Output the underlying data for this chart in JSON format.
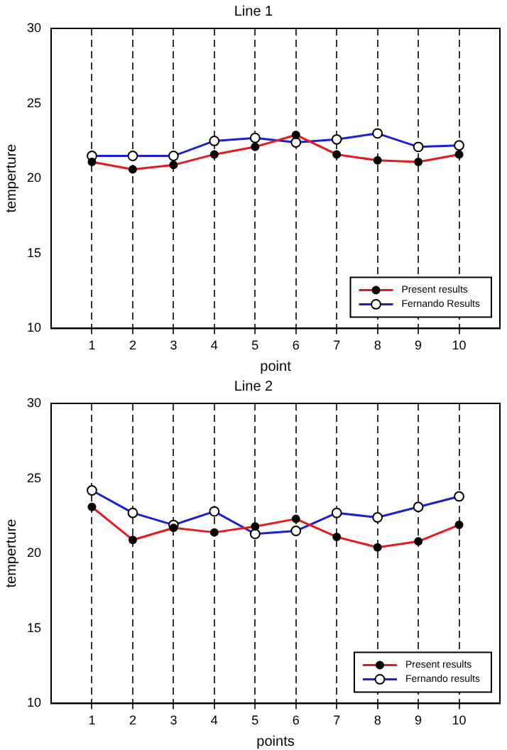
{
  "chart_data": [
    {
      "type": "line",
      "title": "Line 1",
      "xlabel": "point",
      "ylabel": "temperture",
      "x": [
        1,
        2,
        3,
        4,
        5,
        6,
        7,
        8,
        9,
        10
      ],
      "xlim": [
        0,
        11
      ],
      "xticks": [
        1,
        2,
        3,
        4,
        5,
        6,
        7,
        8,
        9,
        10
      ],
      "ylim": [
        10,
        30
      ],
      "yticks": [
        10,
        15,
        20,
        25,
        30
      ],
      "grid": "x",
      "legend": "bottom right",
      "marker": "circle",
      "line_style": "solid",
      "series": [
        {
          "name": "Present results",
          "color": "#e8191e",
          "values": [
            21.1,
            20.6,
            20.9,
            21.6,
            22.1,
            22.9,
            21.6,
            21.2,
            21.1,
            21.6
          ]
        },
        {
          "name": "Fernando Results",
          "color": "#1b1fd6",
          "values": [
            21.5,
            21.5,
            21.5,
            22.5,
            22.7,
            22.4,
            22.6,
            23.0,
            22.1,
            22.2
          ]
        }
      ]
    },
    {
      "type": "line",
      "title": "Line 2",
      "xlabel": "points",
      "ylabel": "temperture",
      "x": [
        1,
        2,
        3,
        4,
        5,
        6,
        7,
        8,
        9,
        10
      ],
      "xlim": [
        0,
        11
      ],
      "xticks": [
        1,
        2,
        3,
        4,
        5,
        6,
        7,
        8,
        9,
        10
      ],
      "ylim": [
        10,
        30
      ],
      "yticks": [
        10,
        15,
        20,
        25,
        30
      ],
      "grid": "x",
      "legend": "bottom right",
      "marker": "circle",
      "line_style": "solid",
      "series": [
        {
          "name": "Present results",
          "color": "#e8191e",
          "values": [
            23.1,
            20.9,
            21.7,
            21.4,
            21.8,
            22.3,
            21.1,
            20.4,
            20.8,
            21.9
          ]
        },
        {
          "name": "Fernando results",
          "color": "#1b1fd6",
          "values": [
            24.2,
            22.7,
            21.9,
            22.8,
            21.3,
            21.5,
            22.7,
            22.4,
            23.1,
            23.8
          ]
        }
      ]
    }
  ]
}
